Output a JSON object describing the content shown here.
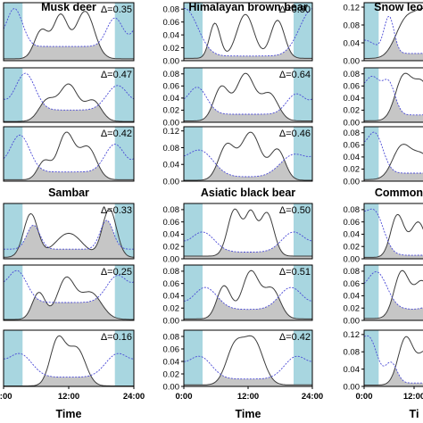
{
  "colors": {
    "night_band": "#a8d6e0",
    "activity_a_line": "#3c3c3c",
    "overlap_fill": "#c6c6c6",
    "activity_b_line": "#4a4ad6",
    "frame": "#000000"
  },
  "x_axis": {
    "label": "Time",
    "ticks": [
      "0:00",
      "12:00",
      "24:00"
    ],
    "tick_values": [
      0,
      12,
      24
    ],
    "range": [
      0,
      24
    ]
  },
  "chart_data": [
    {
      "type": "area",
      "title": "Musk deer",
      "delta": "Δ=0.35",
      "column": 0,
      "row": 0,
      "ylim": [
        0,
        0.12
      ],
      "yticks": [],
      "yticklabels": []
    },
    {
      "type": "area",
      "title": "",
      "delta": "Δ=0.47",
      "column": 0,
      "row": 1,
      "ylim": [
        0,
        0.12
      ],
      "yticks": [],
      "yticklabels": []
    },
    {
      "type": "area",
      "title": "",
      "delta": "Δ=0.42",
      "column": 0,
      "row": 2,
      "ylim": [
        0,
        0.12
      ],
      "yticks": [],
      "yticklabels": []
    },
    {
      "type": "area",
      "title": "Sambar",
      "delta": "Δ=0.33",
      "column": 0,
      "row": 3,
      "ylim": [
        0,
        0.12
      ],
      "yticks": [],
      "yticklabels": []
    },
    {
      "type": "area",
      "title": "",
      "delta": "Δ=0.25",
      "column": 0,
      "row": 4,
      "ylim": [
        0,
        0.12
      ],
      "yticks": [],
      "yticklabels": []
    },
    {
      "type": "area",
      "title": "",
      "delta": "Δ=0.16",
      "column": 0,
      "row": 5,
      "ylim": [
        0,
        0.12
      ],
      "yticks": [],
      "yticklabels": []
    },
    {
      "type": "area",
      "title": "Himalayan brown bear",
      "delta": "Δ=0.80",
      "column": 1,
      "row": 0,
      "ylim": [
        0,
        0.09
      ],
      "yticks": [
        0,
        0.02,
        0.04,
        0.06,
        0.08
      ],
      "yticklabels": [
        "0.00",
        "0.02",
        "0.04",
        "0.06",
        "0.08"
      ]
    },
    {
      "type": "area",
      "title": "",
      "delta": "Δ=0.64",
      "column": 1,
      "row": 1,
      "ylim": [
        0,
        0.09
      ],
      "yticks": [
        0,
        0.02,
        0.04,
        0.06,
        0.08
      ],
      "yticklabels": [
        "0.00",
        "0.02",
        "0.04",
        "0.06",
        "0.08"
      ]
    },
    {
      "type": "area",
      "title": "",
      "delta": "Δ=0.46",
      "column": 1,
      "row": 2,
      "ylim": [
        0,
        0.13
      ],
      "yticks": [
        0,
        0.04,
        0.08,
        0.12
      ],
      "yticklabels": [
        "0.00",
        "0.04",
        "0.08",
        "0.12"
      ]
    },
    {
      "type": "area",
      "title": "Asiatic black bear",
      "delta": "Δ=0.50",
      "column": 1,
      "row": 3,
      "ylim": [
        0,
        0.09
      ],
      "yticks": [
        0,
        0.02,
        0.04,
        0.06,
        0.08
      ],
      "yticklabels": [
        "0.00",
        "0.02",
        "0.04",
        "0.06",
        "0.08"
      ]
    },
    {
      "type": "area",
      "title": "",
      "delta": "Δ=0.51",
      "column": 1,
      "row": 4,
      "ylim": [
        0,
        0.09
      ],
      "yticks": [
        0,
        0.02,
        0.04,
        0.06,
        0.08
      ],
      "yticklabels": [
        "0.00",
        "0.02",
        "0.04",
        "0.06",
        "0.08"
      ]
    },
    {
      "type": "area",
      "title": "",
      "delta": "Δ=0.42",
      "column": 1,
      "row": 5,
      "ylim": [
        0,
        0.09
      ],
      "yticks": [
        0,
        0.02,
        0.04,
        0.06,
        0.08
      ],
      "yticklabels": [
        "0.00",
        "0.02",
        "0.04",
        "0.06",
        "0.08"
      ]
    },
    {
      "type": "area",
      "title": "Snow leo",
      "delta": "",
      "column": 2,
      "row": 0,
      "ylim": [
        0,
        0.13
      ],
      "yticks": [
        0,
        0.04,
        0.08,
        0.12
      ],
      "yticklabels": [
        "0.00",
        "0.04",
        "0.08",
        "0.12"
      ]
    },
    {
      "type": "area",
      "title": "",
      "delta": "",
      "column": 2,
      "row": 1,
      "ylim": [
        0,
        0.09
      ],
      "yticks": [
        0,
        0.02,
        0.04,
        0.06,
        0.08
      ],
      "yticklabels": [
        "0.00",
        "0.02",
        "0.04",
        "0.06",
        "0.08"
      ]
    },
    {
      "type": "area",
      "title": "",
      "delta": "",
      "column": 2,
      "row": 2,
      "ylim": [
        0,
        0.09
      ],
      "yticks": [
        0,
        0.02,
        0.04,
        0.06,
        0.08
      ],
      "yticklabels": [
        "0.00",
        "0.02",
        "0.04",
        "0.06",
        "0.08"
      ]
    },
    {
      "type": "area",
      "title": "Common",
      "delta": "",
      "column": 2,
      "row": 3,
      "ylim": [
        0,
        0.09
      ],
      "yticks": [
        0,
        0.02,
        0.04,
        0.06,
        0.08
      ],
      "yticklabels": [
        "0.00",
        "0.02",
        "0.04",
        "0.06",
        "0.08"
      ]
    },
    {
      "type": "area",
      "title": "",
      "delta": "",
      "column": 2,
      "row": 4,
      "ylim": [
        0,
        0.09
      ],
      "yticks": [
        0,
        0.02,
        0.04,
        0.06,
        0.08
      ],
      "yticklabels": [
        "0.00",
        "0.02",
        "0.04",
        "0.06",
        "0.08"
      ]
    },
    {
      "type": "area",
      "title": "",
      "delta": "",
      "column": 2,
      "row": 5,
      "ylim": [
        0,
        0.13
      ],
      "yticks": [
        0,
        0.04,
        0.08,
        0.12
      ],
      "yticklabels": [
        "0.00",
        "0.04",
        "0.08",
        "0.12"
      ]
    }
  ]
}
